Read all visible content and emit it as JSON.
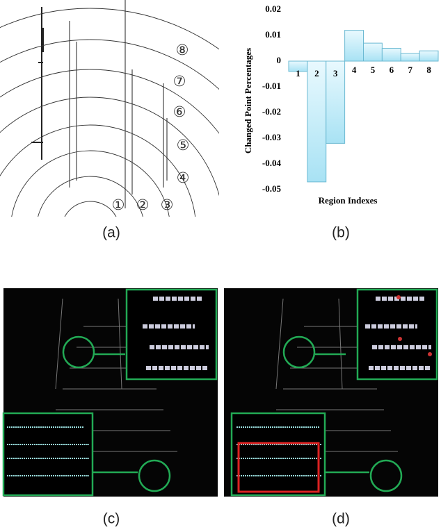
{
  "panels": [
    "(a)",
    "(b)",
    "(c)",
    "(d)"
  ],
  "regions": [
    "①",
    "②",
    "③",
    "④",
    "⑤",
    "⑥",
    "⑦",
    "⑧"
  ],
  "chart_data": {
    "type": "bar",
    "ylabel": "Changed Point Percentages",
    "xlabel": "Region Indexes",
    "categories": [
      "1",
      "2",
      "3",
      "4",
      "5",
      "6",
      "7",
      "8"
    ],
    "values": [
      -0.004,
      -0.047,
      -0.032,
      0.012,
      0.007,
      0.005,
      0.003,
      0.004
    ],
    "color": "#c4eefa",
    "ylim": [
      -0.05,
      0.02
    ],
    "yticks": [
      0.02,
      0.01,
      0,
      -0.01,
      -0.02,
      -0.03,
      -0.04,
      -0.05
    ]
  }
}
